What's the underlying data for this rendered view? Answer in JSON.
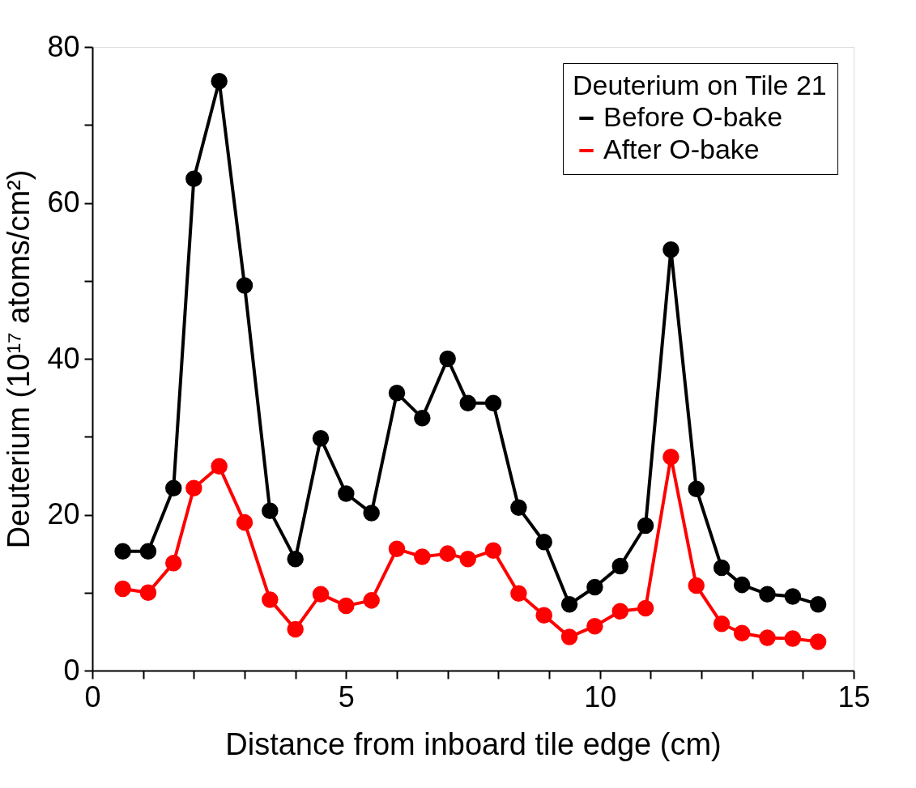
{
  "chart_data": {
    "type": "line",
    "xlabel": "Distance from inboard tile edge (cm)",
    "ylabel": "Deuterium (10¹⁷ atoms/cm²)",
    "legend_title": "Deuterium on Tile 21",
    "x": [
      0.6,
      1.1,
      1.6,
      2.0,
      2.5,
      3.0,
      3.5,
      4.0,
      4.5,
      5.0,
      5.5,
      6.0,
      6.5,
      7.0,
      7.4,
      7.9,
      8.4,
      8.9,
      9.4,
      9.9,
      10.4,
      10.9,
      11.4,
      11.9,
      12.4,
      12.8,
      13.3,
      13.8,
      14.3
    ],
    "series": [
      {
        "name": "Before O-bake",
        "color": "#000000",
        "values": [
          15.3,
          15.3,
          23.4,
          63.1,
          75.6,
          49.4,
          20.5,
          14.3,
          29.8,
          22.7,
          20.2,
          35.6,
          32.4,
          40.0,
          34.3,
          34.3,
          20.9,
          16.5,
          8.5,
          10.7,
          13.4,
          18.6,
          54.0,
          23.3,
          13.2,
          11.0,
          9.8,
          9.5,
          8.5
        ]
      },
      {
        "name": "After O-bake",
        "color": "#ff0000",
        "values": [
          10.5,
          10.0,
          13.8,
          23.4,
          26.2,
          19.0,
          9.1,
          5.3,
          9.8,
          8.3,
          9.0,
          15.6,
          14.6,
          15.0,
          14.3,
          15.4,
          9.9,
          7.1,
          4.3,
          5.7,
          7.6,
          8.0,
          27.4,
          10.9,
          6.0,
          4.8,
          4.2,
          4.1,
          3.7
        ]
      }
    ],
    "xlim": [
      0,
      15
    ],
    "xticks": [
      0,
      {
        "value": 1,
        "label": null
      },
      {
        "value": 2,
        "label": null
      },
      {
        "value": 3,
        "label": null
      },
      {
        "value": 4,
        "label": null
      },
      5,
      {
        "value": 6,
        "label": null
      },
      {
        "value": 7,
        "label": null
      },
      {
        "value": 8,
        "label": null
      },
      {
        "value": 9,
        "label": null
      },
      10,
      {
        "value": 11,
        "label": null
      },
      {
        "value": 12,
        "label": null
      },
      {
        "value": 13,
        "label": null
      },
      {
        "value": 14,
        "label": null
      },
      15
    ],
    "ylim": [
      0,
      80
    ],
    "yticks": [
      0,
      {
        "value": 10,
        "label": null
      },
      20,
      {
        "value": 30,
        "label": null
      },
      40,
      {
        "value": 50,
        "label": null
      },
      60,
      {
        "value": 70,
        "label": null
      },
      80
    ],
    "grid": false,
    "legend": "top right",
    "marker": "circle",
    "line_style": "solid"
  }
}
